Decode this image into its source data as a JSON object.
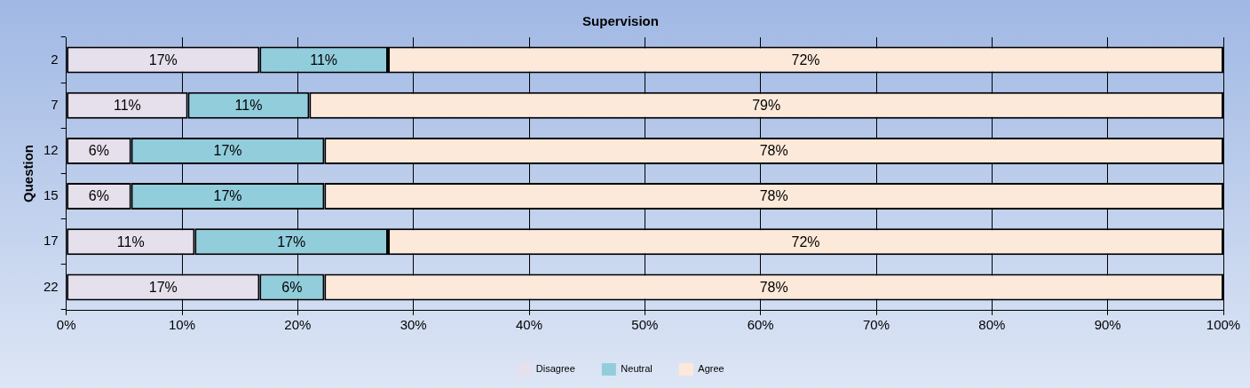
{
  "chart_data": {
    "type": "bar",
    "orientation": "horizontal",
    "stacked": true,
    "title": "Supervision",
    "ylabel": "Question",
    "categories": [
      "2",
      "7",
      "12",
      "15",
      "17",
      "22"
    ],
    "series": [
      {
        "name": "Disagree",
        "color": "#e6e0ec",
        "values": [
          16.7,
          10.5,
          5.6,
          5.6,
          11.1,
          16.7
        ],
        "value_labels": [
          "17%",
          "11%",
          "6%",
          "6%",
          "11%",
          "17%"
        ]
      },
      {
        "name": "Neutral",
        "color": "#92cddc",
        "values": [
          11.1,
          10.5,
          16.7,
          16.7,
          16.7,
          5.6
        ],
        "value_labels": [
          "11%",
          "11%",
          "17%",
          "17%",
          "17%",
          "6%"
        ]
      },
      {
        "name": "Agree",
        "color": "#fde9d9",
        "values": [
          72.2,
          79.0,
          77.7,
          77.7,
          72.2,
          77.7
        ],
        "value_labels": [
          "72%",
          "79%",
          "78%",
          "78%",
          "72%",
          "78%"
        ]
      }
    ],
    "xlim": [
      0,
      100
    ],
    "xticks": [
      {
        "value": 0,
        "label": "0%"
      },
      {
        "value": 10,
        "label": "10%"
      },
      {
        "value": 20,
        "label": "20%"
      },
      {
        "value": 30,
        "label": "30%"
      },
      {
        "value": 40,
        "label": "40%"
      },
      {
        "value": 50,
        "label": "50%"
      },
      {
        "value": 60,
        "label": "60%"
      },
      {
        "value": 70,
        "label": "70%"
      },
      {
        "value": 80,
        "label": "80%"
      },
      {
        "value": 90,
        "label": "90%"
      },
      {
        "value": 100,
        "label": "100%"
      }
    ],
    "grid": "x",
    "legend": "bottom"
  }
}
